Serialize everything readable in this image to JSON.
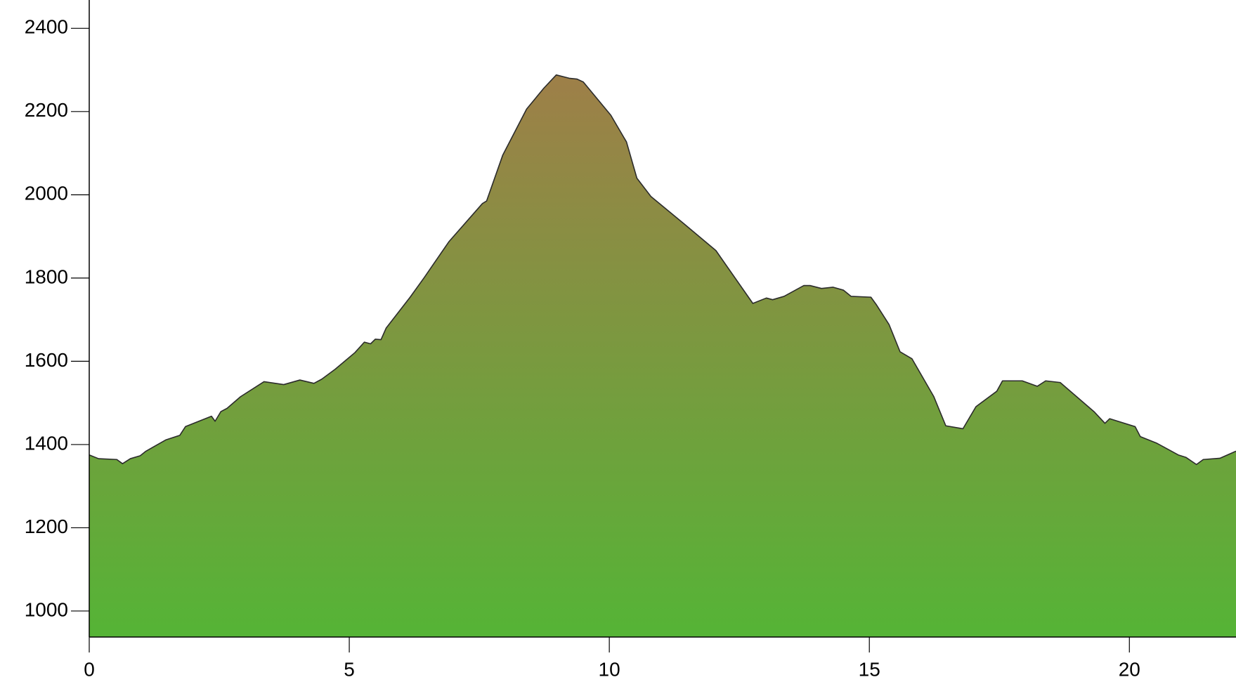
{
  "chart_data": {
    "type": "area",
    "x": [
      0,
      0.18,
      0.53,
      0.64,
      0.79,
      0.98,
      1.09,
      1.47,
      1.74,
      1.85,
      2.35,
      2.42,
      2.53,
      2.65,
      2.91,
      3.36,
      3.74,
      4.05,
      4.32,
      4.47,
      4.73,
      5.11,
      5.29,
      5.41,
      5.5,
      5.61,
      5.71,
      6.17,
      6.44,
      6.92,
      7.56,
      7.64,
      7.95,
      8.41,
      8.74,
      8.98,
      9.23,
      9.38,
      9.5,
      10.03,
      10.33,
      10.53,
      10.8,
      11.44,
      12.05,
      12.76,
      13.02,
      13.14,
      13.36,
      13.74,
      13.86,
      14.08,
      14.3,
      14.5,
      14.65,
      15.03,
      15.14,
      15.38,
      15.59,
      15.82,
      16.24,
      16.47,
      16.8,
      17.05,
      17.45,
      17.56,
      17.94,
      18.23,
      18.39,
      18.67,
      19.32,
      19.53,
      19.62,
      20.11,
      20.21,
      20.53,
      20.94,
      21.09,
      21.29,
      21.42,
      21.74,
      22.05
    ],
    "values": [
      1375,
      1366,
      1364,
      1354,
      1366,
      1373,
      1384,
      1411,
      1422,
      1443,
      1468,
      1456,
      1479,
      1487,
      1515,
      1551,
      1544,
      1555,
      1547,
      1557,
      1581,
      1621,
      1646,
      1642,
      1653,
      1652,
      1680,
      1754,
      1801,
      1888,
      1979,
      1985,
      2095,
      2206,
      2256,
      2288,
      2280,
      2278,
      2271,
      2191,
      2127,
      2040,
      1996,
      1930,
      1866,
      1739,
      1752,
      1748,
      1756,
      1782,
      1782,
      1775,
      1778,
      1771,
      1756,
      1754,
      1735,
      1688,
      1623,
      1606,
      1515,
      1445,
      1438,
      1491,
      1528,
      1553,
      1553,
      1540,
      1553,
      1549,
      1479,
      1451,
      1462,
      1443,
      1419,
      1403,
      1375,
      1369,
      1352,
      1364,
      1367,
      1384
    ],
    "xlim": [
      0,
      22.05
    ],
    "ylim": [
      937.5,
      2468
    ],
    "xticks": [
      0,
      5,
      10,
      15,
      20
    ],
    "yticks": [
      1000,
      1200,
      1400,
      1600,
      1800,
      2000,
      2200,
      2400
    ],
    "line_color": "#2b2b2b",
    "fill_gradient": [
      "#9e7f48",
      "#55b436"
    ]
  }
}
